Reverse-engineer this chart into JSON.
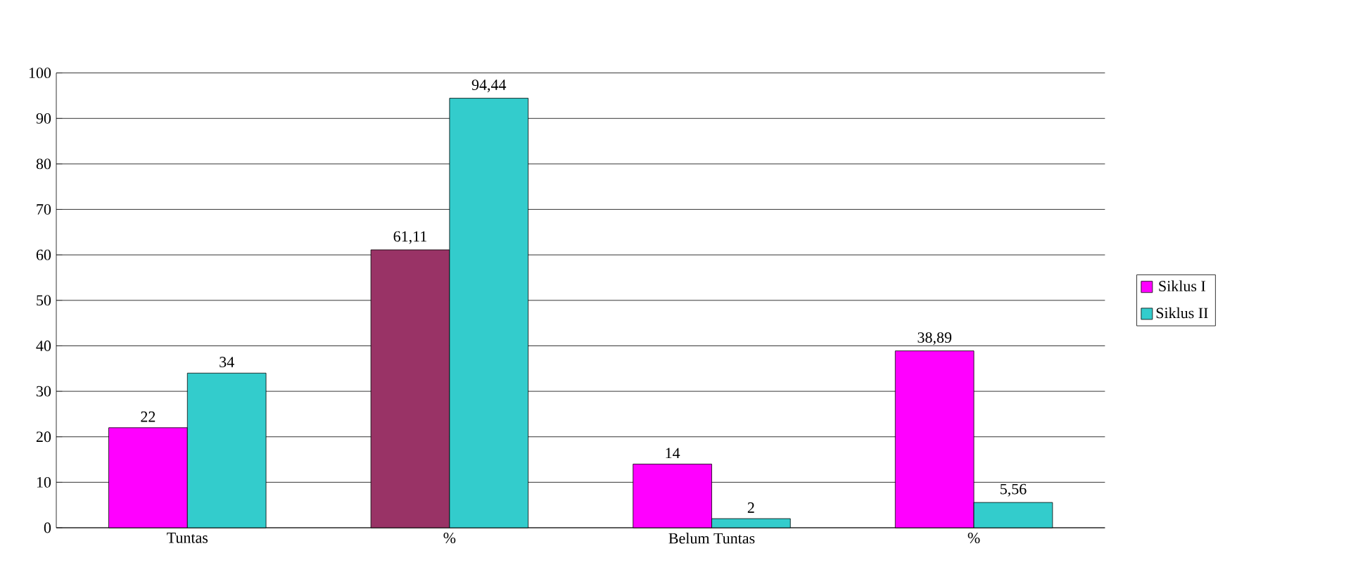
{
  "chart_data": {
    "type": "bar",
    "categories": [
      "Tuntas",
      "%",
      "Belum Tuntas",
      "%"
    ],
    "series": [
      {
        "name": "Siklus I",
        "color": "#ff00ff",
        "colors": [
          "#ff00ff",
          "#993366",
          "#ff00ff",
          "#ff00ff"
        ],
        "values": [
          22,
          61.11,
          14,
          38.89
        ],
        "value_labels": [
          "22",
          "61,11",
          "14",
          "38,89"
        ]
      },
      {
        "name": "Siklus II",
        "color": "#33cccc",
        "values": [
          34,
          94.44,
          2,
          5.56
        ],
        "value_labels": [
          "34",
          "94,44",
          "2",
          "5,56"
        ]
      }
    ],
    "ylim": [
      0,
      100
    ],
    "yticks": [
      0,
      10,
      20,
      30,
      40,
      50,
      60,
      70,
      80,
      90,
      100
    ],
    "grid": "y",
    "legend": "right"
  }
}
